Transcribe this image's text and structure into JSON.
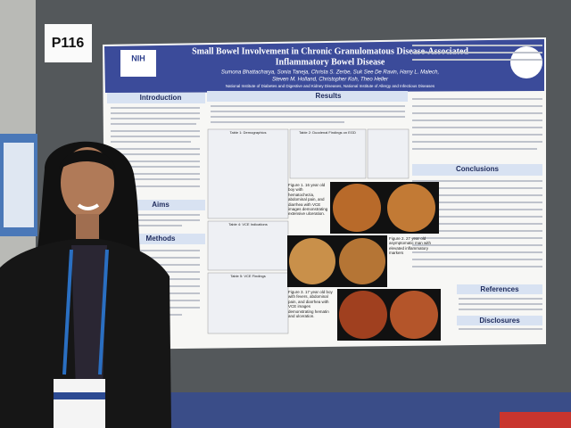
{
  "label": "P116",
  "poster": {
    "title_lines": [
      "Small Bowel Involvement in Chronic Granulomatous Disease-Associated",
      "Inflammatory Bowel Disease"
    ],
    "authors_lines": [
      "Sumona Bhattacharya, Sonia Taneja, Christa S. Zerbe, Suk See De Ravin, Harry L. Malech,",
      "Steven M. Holland, Christopher Koh, Theo Heller"
    ],
    "affiliation": "National Institute of Diabetes and Digestive and Kidney Diseases, National Institute of Allergy and Infectious Diseases",
    "logo": "NIH",
    "sections": {
      "introduction": "Introduction",
      "aims": "Aims",
      "methods": "Methods",
      "results": "Results",
      "conclusions": "Conclusions",
      "references": "References",
      "disclosures": "Disclosures"
    },
    "tables": [
      "Table 1: Demographics",
      "Table 2: Duodenal Findings on EGD",
      "Table 4: VCE Indications",
      "Table 5: VCE Findings"
    ],
    "figures": [
      "Figure 1. 16 year old boy with hematochezia, abdominal pain, and diarrhea with VCE images demonstrating extensive ulceration.",
      "Figure 2. 27 year old asymptomatic man with elevated inflammatory markers",
      "Figure 3. 17 year old boy with fevers, abdominal pain, and diarrhea with VCE images demonstrating hematin and ulceration."
    ]
  }
}
